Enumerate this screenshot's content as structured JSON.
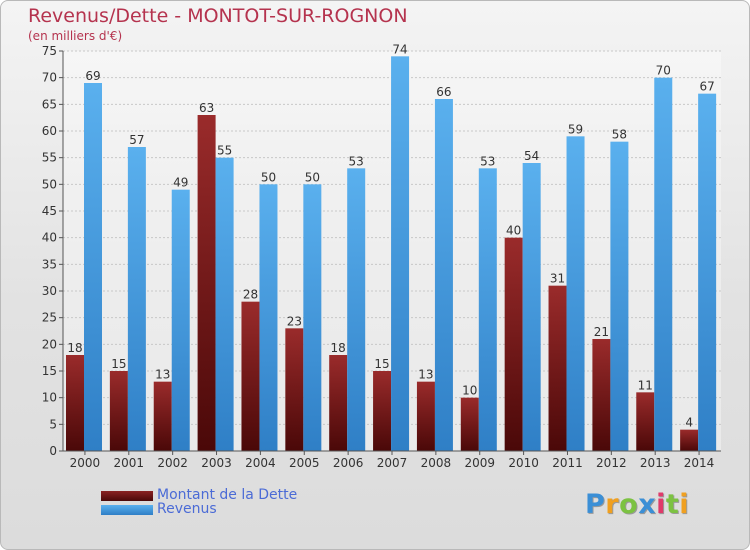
{
  "chart_data": {
    "type": "bar",
    "title": "Revenus/Dette - MONTOT-SUR-ROGNON",
    "subtitle": "(en milliers d'€)",
    "categories": [
      "2000",
      "2001",
      "2002",
      "2003",
      "2004",
      "2005",
      "2006",
      "2007",
      "2008",
      "2009",
      "2010",
      "2011",
      "2012",
      "2013",
      "2014"
    ],
    "series": [
      {
        "name": "Montant de la Dette",
        "color": "#7a1a1a",
        "values": [
          18,
          15,
          13,
          63,
          28,
          23,
          18,
          15,
          13,
          10,
          40,
          31,
          21,
          11,
          4
        ]
      },
      {
        "name": "Revenus",
        "color": "#4aa3e6",
        "values": [
          69,
          57,
          49,
          55,
          50,
          50,
          53,
          74,
          66,
          53,
          54,
          59,
          58,
          70,
          67
        ]
      }
    ],
    "ylim": [
      0,
      75
    ],
    "yticks": [
      0,
      5,
      10,
      15,
      20,
      25,
      30,
      35,
      40,
      45,
      50,
      55,
      60,
      65,
      70,
      75
    ],
    "grid": true,
    "legend_position": "bottom-left"
  },
  "legend": {
    "dette_label": "Montant de la Dette",
    "revenus_label": "Revenus",
    "dette_color": "#6e1616",
    "revenus_color": "#4aa3e6"
  },
  "logo": {
    "letters": [
      "P",
      "r",
      "o",
      "x",
      "i",
      "t",
      "i"
    ],
    "colors": [
      "#3b8fd6",
      "#f0a020",
      "#7cc242",
      "#3b8fd6",
      "#e03a6a",
      "#7cc242",
      "#f0a020"
    ]
  }
}
